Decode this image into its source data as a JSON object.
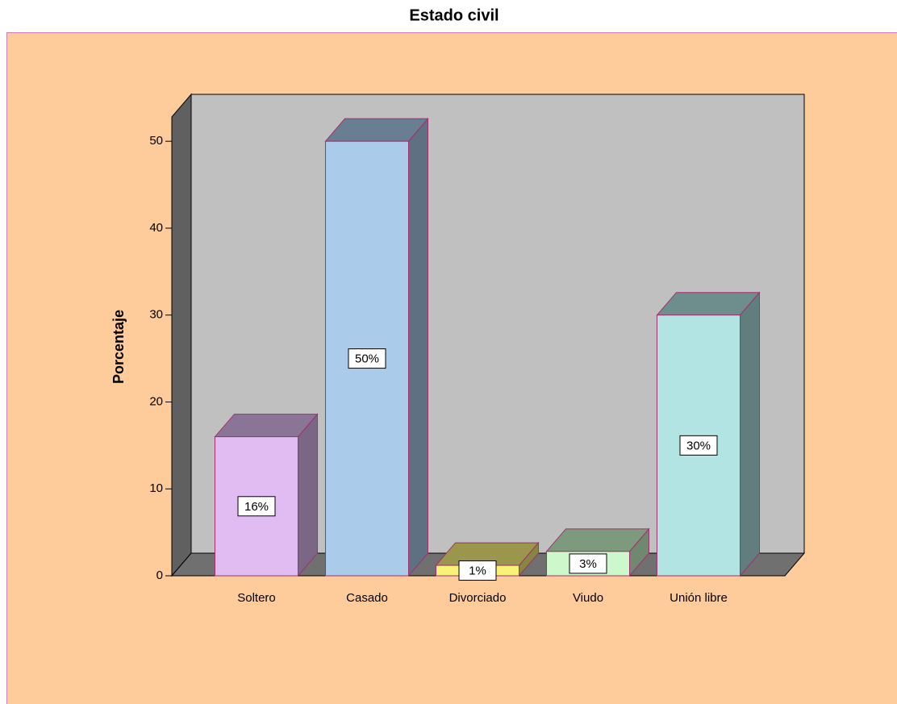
{
  "chart_data": {
    "type": "bar3d",
    "title": "Estado civil",
    "ylabel": "Porcentaje",
    "categories": [
      "Soltero",
      "Casado",
      "Divorciado",
      "Viudo",
      "Unión libre"
    ],
    "values": [
      16,
      50,
      1.2,
      2.8,
      30
    ],
    "value_labels": [
      "16%",
      "50%",
      "1%",
      "3%",
      "30%"
    ],
    "colors": [
      "#e0bcf2",
      "#aacbea",
      "#f8f27a",
      "#ccf8cc",
      "#b2e4e4"
    ],
    "ylim": [
      0,
      52.8
    ],
    "yticks": [
      0,
      10,
      20,
      30,
      40,
      50
    ],
    "grid": false
  }
}
